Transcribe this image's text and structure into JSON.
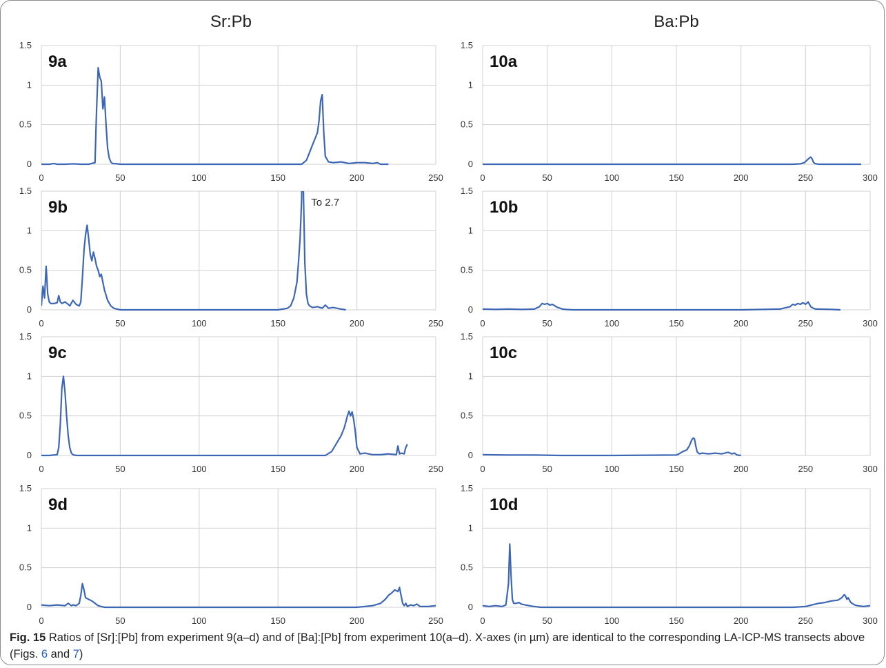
{
  "columns": [
    {
      "title": "Sr:Pb"
    },
    {
      "title": "Ba:Pb"
    }
  ],
  "caption": {
    "label": "Fig. 15",
    "text_1": " Ratios of [Sr]:[Pb] from experiment 9(a–d) and of [Ba]:[Pb] from experiment 10(a–d). X-axes (in µm) are identical to the corresponding LA-ICP-MS transects above (Figs. ",
    "ref_1": "6",
    "text_2": " and ",
    "ref_2": "7",
    "text_3": ")"
  },
  "colors": {
    "line": "#3d67b5",
    "grid": "#d0d0d0",
    "text": "#333333"
  },
  "chart_data": [
    {
      "type": "line",
      "panel_label": "9a",
      "xlim": [
        0,
        250
      ],
      "ylim": [
        0,
        1.5
      ],
      "xticks": [
        0,
        50,
        100,
        150,
        200,
        250
      ],
      "yticks": [
        0,
        0.5,
        1,
        1.5
      ],
      "ytick_labels": [
        "0",
        "0.5",
        "1",
        "1.5"
      ],
      "series": [
        {
          "x": [
            0,
            5,
            8,
            10,
            15,
            20,
            25,
            30,
            34,
            35,
            36,
            37,
            38,
            39,
            40,
            41,
            42,
            43,
            44,
            45,
            48,
            50,
            60,
            100,
            150,
            165,
            168,
            170,
            172,
            174,
            175,
            176,
            177,
            178,
            179,
            180,
            182,
            185,
            190,
            195,
            200,
            205,
            210,
            213,
            215,
            220
          ],
          "y": [
            0,
            0,
            0.01,
            0,
            0,
            0.005,
            0,
            0,
            0.02,
            0.7,
            1.22,
            1.1,
            1.05,
            0.7,
            0.85,
            0.5,
            0.2,
            0.08,
            0.03,
            0.01,
            0.005,
            0,
            0,
            0,
            0,
            0,
            0.05,
            0.15,
            0.25,
            0.35,
            0.4,
            0.55,
            0.8,
            0.88,
            0.4,
            0.1,
            0.03,
            0.02,
            0.03,
            0.01,
            0.02,
            0.02,
            0.01,
            0.02,
            0,
            0
          ]
        }
      ]
    },
    {
      "type": "line",
      "panel_label": "9b",
      "xlim": [
        0,
        250
      ],
      "ylim": [
        0,
        1.5
      ],
      "xticks": [
        0,
        50,
        100,
        150,
        200,
        250
      ],
      "yticks": [
        0,
        0.5,
        1,
        1.5
      ],
      "ytick_labels": [
        "0",
        "0.5",
        "1",
        "1.5"
      ],
      "annotation": "To 2.7",
      "series": [
        {
          "x": [
            0,
            1,
            2,
            3,
            4,
            5,
            6,
            8,
            10,
            11,
            12,
            13,
            15,
            17,
            18,
            20,
            22,
            24,
            25,
            26,
            27,
            28,
            29,
            30,
            31,
            32,
            33,
            34,
            35,
            36,
            37,
            38,
            39,
            40,
            42,
            44,
            46,
            48,
            50,
            60,
            100,
            150,
            156,
            158,
            160,
            162,
            163,
            164,
            165,
            165.5,
            166,
            167,
            168,
            169,
            170,
            172,
            175,
            178,
            180,
            182,
            185,
            190,
            193
          ],
          "y": [
            0.05,
            0.3,
            0.15,
            0.55,
            0.2,
            0.1,
            0.08,
            0.08,
            0.09,
            0.18,
            0.1,
            0.08,
            0.1,
            0.07,
            0.05,
            0.12,
            0.07,
            0.05,
            0.1,
            0.4,
            0.75,
            0.95,
            1.07,
            0.9,
            0.7,
            0.62,
            0.73,
            0.65,
            0.55,
            0.5,
            0.42,
            0.45,
            0.35,
            0.25,
            0.12,
            0.05,
            0.02,
            0.01,
            0,
            0,
            0,
            0,
            0.02,
            0.05,
            0.15,
            0.35,
            0.6,
            0.9,
            1.4,
            2.7,
            1.6,
            0.6,
            0.2,
            0.08,
            0.05,
            0.03,
            0.04,
            0.02,
            0.06,
            0.02,
            0.03,
            0.01,
            0
          ]
        }
      ]
    },
    {
      "type": "line",
      "panel_label": "9c",
      "xlim": [
        0,
        250
      ],
      "ylim": [
        0,
        1.5
      ],
      "xticks": [
        0,
        50,
        100,
        150,
        200,
        250
      ],
      "yticks": [
        0,
        0.5,
        1,
        1.5
      ],
      "ytick_labels": [
        "0",
        "0.5",
        "1",
        "1.5"
      ],
      "series": [
        {
          "x": [
            0,
            5,
            10,
            11,
            12,
            13,
            14,
            15,
            16,
            17,
            18,
            19,
            20,
            22,
            25,
            50,
            100,
            150,
            180,
            184,
            187,
            190,
            192,
            194,
            195,
            196,
            197,
            198,
            199,
            200,
            202,
            205,
            210,
            215,
            220,
            225,
            226,
            227,
            228,
            230,
            231,
            232
          ],
          "y": [
            0,
            0,
            0.01,
            0.1,
            0.4,
            0.85,
            1.0,
            0.8,
            0.5,
            0.25,
            0.1,
            0.03,
            0.01,
            0,
            0,
            0,
            0,
            0,
            0,
            0.05,
            0.15,
            0.25,
            0.35,
            0.5,
            0.56,
            0.5,
            0.55,
            0.45,
            0.3,
            0.1,
            0.02,
            0.03,
            0.01,
            0.01,
            0.02,
            0.01,
            0.12,
            0.02,
            0.03,
            0.02,
            0.1,
            0.14
          ]
        }
      ]
    },
    {
      "type": "line",
      "panel_label": "9d",
      "xlim": [
        0,
        250
      ],
      "ylim": [
        0,
        1.5
      ],
      "xticks": [
        0,
        50,
        100,
        150,
        200,
        250
      ],
      "yticks": [
        0,
        0.5,
        1,
        1.5
      ],
      "ytick_labels": [
        "0",
        "0.5",
        "1",
        "1.5"
      ],
      "series": [
        {
          "x": [
            0,
            5,
            10,
            15,
            17,
            19,
            20,
            22,
            24,
            25,
            26,
            27,
            28,
            30,
            32,
            34,
            36,
            38,
            40,
            45,
            50,
            100,
            150,
            200,
            210,
            215,
            218,
            220,
            222,
            224,
            226,
            227,
            228,
            229,
            230,
            231,
            232,
            234,
            236,
            238,
            240,
            245,
            250
          ],
          "y": [
            0.03,
            0.02,
            0.03,
            0.02,
            0.05,
            0.02,
            0.03,
            0.02,
            0.05,
            0.15,
            0.3,
            0.22,
            0.12,
            0.1,
            0.08,
            0.05,
            0.02,
            0.01,
            0,
            0,
            0,
            0,
            0,
            0,
            0.02,
            0.05,
            0.1,
            0.15,
            0.18,
            0.22,
            0.2,
            0.25,
            0.15,
            0.05,
            0.02,
            0.05,
            0.01,
            0.03,
            0.02,
            0.04,
            0.01,
            0.01,
            0.02
          ]
        }
      ]
    },
    {
      "type": "line",
      "panel_label": "10a",
      "xlim": [
        0,
        300
      ],
      "ylim": [
        0,
        1.5
      ],
      "xticks": [
        0,
        50,
        100,
        150,
        200,
        250,
        300
      ],
      "yticks": [
        0,
        0.5,
        1,
        1.5
      ],
      "ytick_labels": [
        "0",
        "0.5",
        "1",
        "1.5"
      ],
      "series": [
        {
          "x": [
            0,
            100,
            200,
            240,
            246,
            249,
            251,
            253,
            254,
            255,
            256,
            257,
            260,
            280,
            293
          ],
          "y": [
            0,
            0,
            0,
            0,
            0.005,
            0.02,
            0.05,
            0.08,
            0.09,
            0.07,
            0.03,
            0.01,
            0,
            0,
            0
          ]
        }
      ]
    },
    {
      "type": "line",
      "panel_label": "10b",
      "xlim": [
        0,
        300
      ],
      "ylim": [
        0,
        1.5
      ],
      "xticks": [
        0,
        50,
        100,
        150,
        200,
        250,
        300
      ],
      "yticks": [
        0,
        0.5,
        1,
        1.5
      ],
      "ytick_labels": [
        "0",
        "0.5",
        "1",
        "1.5"
      ],
      "series": [
        {
          "x": [
            0,
            10,
            20,
            30,
            40,
            44,
            46,
            48,
            50,
            52,
            54,
            56,
            58,
            60,
            62,
            64,
            70,
            100,
            150,
            200,
            230,
            238,
            240,
            242,
            244,
            246,
            248,
            250,
            252,
            254,
            256,
            258,
            260,
            270,
            277
          ],
          "y": [
            0.01,
            0.005,
            0.01,
            0.005,
            0.01,
            0.04,
            0.08,
            0.07,
            0.08,
            0.06,
            0.07,
            0.05,
            0.03,
            0.02,
            0.01,
            0.005,
            0,
            0,
            0,
            0,
            0.01,
            0.04,
            0.07,
            0.06,
            0.08,
            0.07,
            0.09,
            0.07,
            0.1,
            0.04,
            0.02,
            0.01,
            0.01,
            0.005,
            0
          ]
        }
      ]
    },
    {
      "type": "line",
      "panel_label": "10c",
      "xlim": [
        0,
        300
      ],
      "ylim": [
        0,
        1.5
      ],
      "xticks": [
        0,
        50,
        100,
        150,
        200,
        250,
        300
      ],
      "yticks": [
        0,
        0.5,
        1,
        1.5
      ],
      "ytick_labels": [
        "0",
        "0.5",
        "1",
        "1.5"
      ],
      "series": [
        {
          "x": [
            0,
            20,
            40,
            60,
            100,
            150,
            152,
            155,
            158,
            160,
            162,
            163,
            164,
            165,
            166,
            167,
            168,
            170,
            175,
            180,
            185,
            190,
            193,
            195,
            197,
            200
          ],
          "y": [
            0.01,
            0.005,
            0.005,
            0,
            0,
            0.005,
            0.02,
            0.05,
            0.07,
            0.12,
            0.2,
            0.22,
            0.21,
            0.12,
            0.05,
            0.03,
            0.02,
            0.03,
            0.02,
            0.03,
            0.02,
            0.04,
            0.02,
            0.03,
            0.005,
            0
          ]
        }
      ]
    },
    {
      "type": "line",
      "panel_label": "10d",
      "xlim": [
        0,
        300
      ],
      "ylim": [
        0,
        1.5
      ],
      "xticks": [
        0,
        50,
        100,
        150,
        200,
        250,
        300
      ],
      "yticks": [
        0,
        0.5,
        1,
        1.5
      ],
      "ytick_labels": [
        "0",
        "0.5",
        "1",
        "1.5"
      ],
      "series": [
        {
          "x": [
            0,
            5,
            10,
            15,
            18,
            20,
            21,
            22,
            23,
            24,
            26,
            28,
            30,
            33,
            36,
            40,
            45,
            50,
            100,
            150,
            200,
            240,
            250,
            255,
            260,
            265,
            270,
            275,
            278,
            280,
            281,
            282,
            283,
            285,
            288,
            290,
            295,
            300
          ],
          "y": [
            0.02,
            0.01,
            0.02,
            0.01,
            0.03,
            0.3,
            0.8,
            0.4,
            0.1,
            0.05,
            0.05,
            0.06,
            0.04,
            0.03,
            0.02,
            0.01,
            0,
            0,
            0,
            0,
            0,
            0,
            0.01,
            0.03,
            0.05,
            0.06,
            0.08,
            0.09,
            0.12,
            0.16,
            0.14,
            0.1,
            0.12,
            0.06,
            0.03,
            0.02,
            0.01,
            0.02
          ]
        }
      ]
    }
  ]
}
